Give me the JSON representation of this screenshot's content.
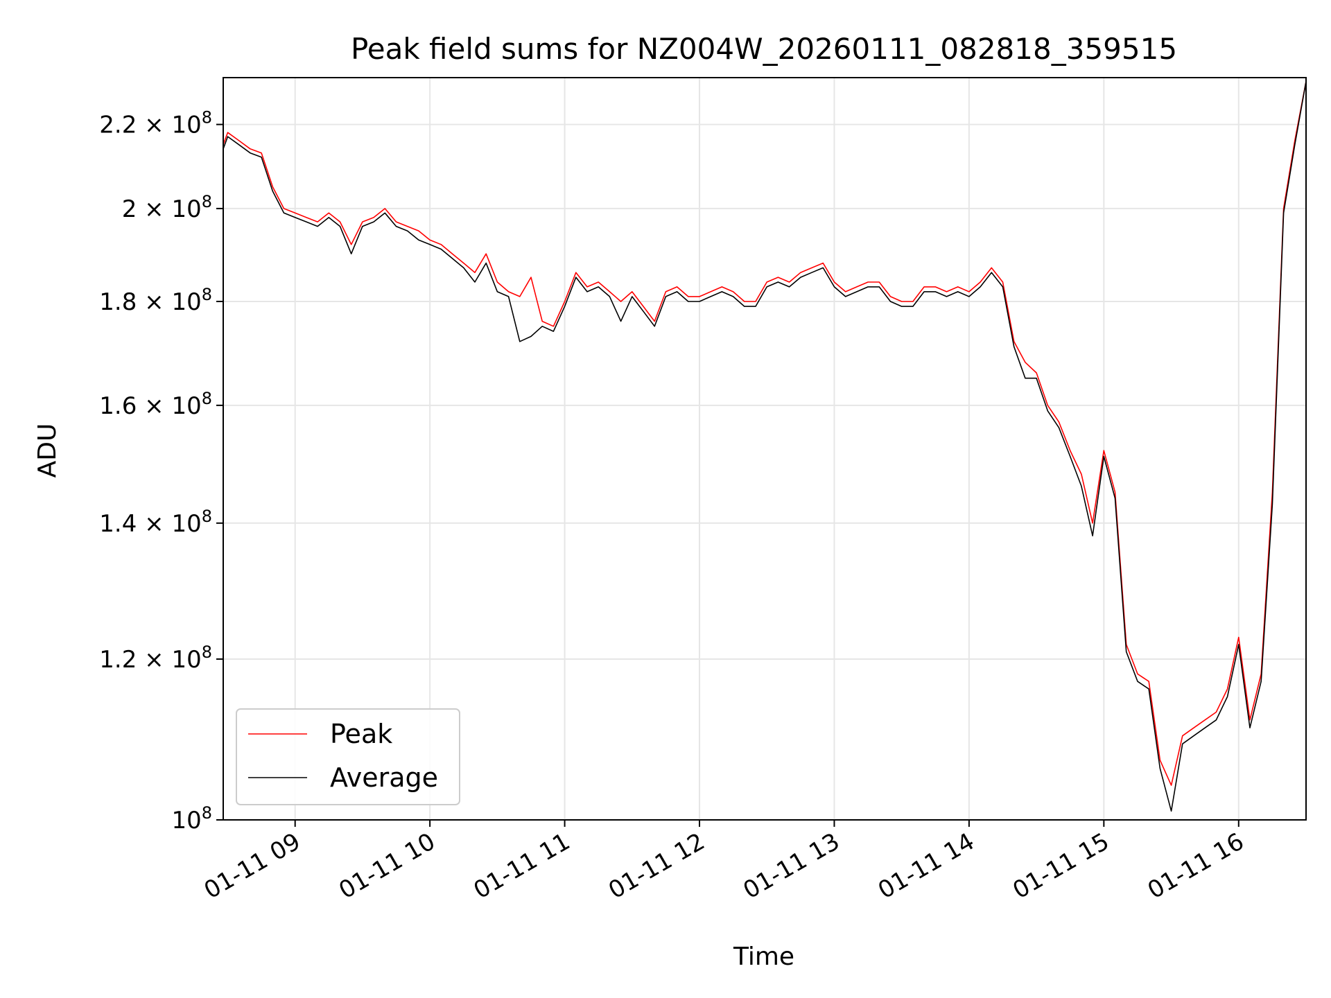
{
  "chart_data": {
    "type": "line",
    "title": "Peak field sums for NZ004W_20260111_082818_359515",
    "xlabel": "Time",
    "ylabel": "ADU",
    "y_scale": "log",
    "ylim": [
      100000000,
      232000000
    ],
    "xlim": [
      "2026-01-11 08:28",
      "2026-01-11 16:30"
    ],
    "grid": true,
    "legend_placement": "lower-left",
    "x_ticks": [
      {
        "t": "2026-01-11 09:00",
        "label": "01-11 09"
      },
      {
        "t": "2026-01-11 10:00",
        "label": "01-11 10"
      },
      {
        "t": "2026-01-11 11:00",
        "label": "01-11 11"
      },
      {
        "t": "2026-01-11 12:00",
        "label": "01-11 12"
      },
      {
        "t": "2026-01-11 13:00",
        "label": "01-11 13"
      },
      {
        "t": "2026-01-11 14:00",
        "label": "01-11 14"
      },
      {
        "t": "2026-01-11 15:00",
        "label": "01-11 15"
      },
      {
        "t": "2026-01-11 16:00",
        "label": "01-11 16"
      }
    ],
    "y_ticks": [
      {
        "value": 100000000,
        "mantissa": "",
        "exp": "8"
      },
      {
        "value": 120000000,
        "mantissa": "1.2",
        "exp": "8"
      },
      {
        "value": 140000000,
        "mantissa": "1.4",
        "exp": "8"
      },
      {
        "value": 160000000,
        "mantissa": "1.6",
        "exp": "8"
      },
      {
        "value": 180000000,
        "mantissa": "1.8",
        "exp": "8"
      },
      {
        "value": 200000000,
        "mantissa": "2",
        "exp": "8"
      },
      {
        "value": 220000000,
        "mantissa": "2.2",
        "exp": "8"
      }
    ],
    "series": [
      {
        "name": "Peak",
        "color": "#ff0000",
        "x": [
          "2026-01-11 08:28",
          "2026-01-11 08:30",
          "2026-01-11 08:35",
          "2026-01-11 08:40",
          "2026-01-11 08:45",
          "2026-01-11 08:50",
          "2026-01-11 08:55",
          "2026-01-11 09:00",
          "2026-01-11 09:05",
          "2026-01-11 09:10",
          "2026-01-11 09:15",
          "2026-01-11 09:20",
          "2026-01-11 09:25",
          "2026-01-11 09:30",
          "2026-01-11 09:35",
          "2026-01-11 09:40",
          "2026-01-11 09:45",
          "2026-01-11 09:50",
          "2026-01-11 09:55",
          "2026-01-11 10:00",
          "2026-01-11 10:05",
          "2026-01-11 10:10",
          "2026-01-11 10:15",
          "2026-01-11 10:20",
          "2026-01-11 10:25",
          "2026-01-11 10:30",
          "2026-01-11 10:35",
          "2026-01-11 10:40",
          "2026-01-11 10:45",
          "2026-01-11 10:50",
          "2026-01-11 10:55",
          "2026-01-11 11:00",
          "2026-01-11 11:05",
          "2026-01-11 11:10",
          "2026-01-11 11:15",
          "2026-01-11 11:20",
          "2026-01-11 11:25",
          "2026-01-11 11:30",
          "2026-01-11 11:35",
          "2026-01-11 11:40",
          "2026-01-11 11:45",
          "2026-01-11 11:50",
          "2026-01-11 11:55",
          "2026-01-11 12:00",
          "2026-01-11 12:05",
          "2026-01-11 12:10",
          "2026-01-11 12:15",
          "2026-01-11 12:20",
          "2026-01-11 12:25",
          "2026-01-11 12:30",
          "2026-01-11 12:35",
          "2026-01-11 12:40",
          "2026-01-11 12:45",
          "2026-01-11 12:50",
          "2026-01-11 12:55",
          "2026-01-11 13:00",
          "2026-01-11 13:05",
          "2026-01-11 13:10",
          "2026-01-11 13:15",
          "2026-01-11 13:20",
          "2026-01-11 13:25",
          "2026-01-11 13:30",
          "2026-01-11 13:35",
          "2026-01-11 13:40",
          "2026-01-11 13:45",
          "2026-01-11 13:50",
          "2026-01-11 13:55",
          "2026-01-11 14:00",
          "2026-01-11 14:05",
          "2026-01-11 14:10",
          "2026-01-11 14:15",
          "2026-01-11 14:20",
          "2026-01-11 14:25",
          "2026-01-11 14:30",
          "2026-01-11 14:35",
          "2026-01-11 14:40",
          "2026-01-11 14:45",
          "2026-01-11 14:50",
          "2026-01-11 14:55",
          "2026-01-11 15:00",
          "2026-01-11 15:05",
          "2026-01-11 15:10",
          "2026-01-11 15:15",
          "2026-01-11 15:20",
          "2026-01-11 15:25",
          "2026-01-11 15:30",
          "2026-01-11 15:35",
          "2026-01-11 15:40",
          "2026-01-11 15:45",
          "2026-01-11 15:50",
          "2026-01-11 15:55",
          "2026-01-11 16:00",
          "2026-01-11 16:05",
          "2026-01-11 16:10",
          "2026-01-11 16:15",
          "2026-01-11 16:20",
          "2026-01-11 16:25",
          "2026-01-11 16:30"
        ],
        "values": [
          215000000,
          218000000,
          216000000,
          214000000,
          213000000,
          205000000,
          200000000,
          199000000,
          198000000,
          197000000,
          199000000,
          197000000,
          192000000,
          197000000,
          198000000,
          200000000,
          197000000,
          196000000,
          195000000,
          193000000,
          192000000,
          190000000,
          188000000,
          186000000,
          190000000,
          184000000,
          182000000,
          181000000,
          185000000,
          176000000,
          175000000,
          180000000,
          186000000,
          183000000,
          184000000,
          182000000,
          180000000,
          182000000,
          179000000,
          176000000,
          182000000,
          183000000,
          181000000,
          181000000,
          182000000,
          183000000,
          182000000,
          180000000,
          180000000,
          184000000,
          185000000,
          184000000,
          186000000,
          187000000,
          188000000,
          184000000,
          182000000,
          183000000,
          184000000,
          184000000,
          181000000,
          180000000,
          180000000,
          183000000,
          183000000,
          182000000,
          183000000,
          182000000,
          184000000,
          187000000,
          184000000,
          172000000,
          168000000,
          166000000,
          160000000,
          157000000,
          152000000,
          148000000,
          140000000,
          152000000,
          145000000,
          122000000,
          118000000,
          117000000,
          107000000,
          104000000,
          110000000,
          111000000,
          112000000,
          113000000,
          116000000,
          123000000,
          112000000,
          118000000,
          145000000,
          200000000,
          216000000,
          231000000
        ]
      },
      {
        "name": "Average",
        "color": "#000000",
        "x": [
          "2026-01-11 08:28",
          "2026-01-11 08:30",
          "2026-01-11 08:35",
          "2026-01-11 08:40",
          "2026-01-11 08:45",
          "2026-01-11 08:50",
          "2026-01-11 08:55",
          "2026-01-11 09:00",
          "2026-01-11 09:05",
          "2026-01-11 09:10",
          "2026-01-11 09:15",
          "2026-01-11 09:20",
          "2026-01-11 09:25",
          "2026-01-11 09:30",
          "2026-01-11 09:35",
          "2026-01-11 09:40",
          "2026-01-11 09:45",
          "2026-01-11 09:50",
          "2026-01-11 09:55",
          "2026-01-11 10:00",
          "2026-01-11 10:05",
          "2026-01-11 10:10",
          "2026-01-11 10:15",
          "2026-01-11 10:20",
          "2026-01-11 10:25",
          "2026-01-11 10:30",
          "2026-01-11 10:35",
          "2026-01-11 10:40",
          "2026-01-11 10:45",
          "2026-01-11 10:50",
          "2026-01-11 10:55",
          "2026-01-11 11:00",
          "2026-01-11 11:05",
          "2026-01-11 11:10",
          "2026-01-11 11:15",
          "2026-01-11 11:20",
          "2026-01-11 11:25",
          "2026-01-11 11:30",
          "2026-01-11 11:35",
          "2026-01-11 11:40",
          "2026-01-11 11:45",
          "2026-01-11 11:50",
          "2026-01-11 11:55",
          "2026-01-11 12:00",
          "2026-01-11 12:05",
          "2026-01-11 12:10",
          "2026-01-11 12:15",
          "2026-01-11 12:20",
          "2026-01-11 12:25",
          "2026-01-11 12:30",
          "2026-01-11 12:35",
          "2026-01-11 12:40",
          "2026-01-11 12:45",
          "2026-01-11 12:50",
          "2026-01-11 12:55",
          "2026-01-11 13:00",
          "2026-01-11 13:05",
          "2026-01-11 13:10",
          "2026-01-11 13:15",
          "2026-01-11 13:20",
          "2026-01-11 13:25",
          "2026-01-11 13:30",
          "2026-01-11 13:35",
          "2026-01-11 13:40",
          "2026-01-11 13:45",
          "2026-01-11 13:50",
          "2026-01-11 13:55",
          "2026-01-11 14:00",
          "2026-01-11 14:05",
          "2026-01-11 14:10",
          "2026-01-11 14:15",
          "2026-01-11 14:20",
          "2026-01-11 14:25",
          "2026-01-11 14:30",
          "2026-01-11 14:35",
          "2026-01-11 14:40",
          "2026-01-11 14:45",
          "2026-01-11 14:50",
          "2026-01-11 14:55",
          "2026-01-11 15:00",
          "2026-01-11 15:05",
          "2026-01-11 15:10",
          "2026-01-11 15:15",
          "2026-01-11 15:20",
          "2026-01-11 15:25",
          "2026-01-11 15:30",
          "2026-01-11 15:35",
          "2026-01-11 15:40",
          "2026-01-11 15:45",
          "2026-01-11 15:50",
          "2026-01-11 15:55",
          "2026-01-11 16:00",
          "2026-01-11 16:05",
          "2026-01-11 16:10",
          "2026-01-11 16:15",
          "2026-01-11 16:20",
          "2026-01-11 16:25",
          "2026-01-11 16:30"
        ],
        "values": [
          214000000,
          217000000,
          215000000,
          213000000,
          212000000,
          204000000,
          199000000,
          198000000,
          197000000,
          196000000,
          198000000,
          196000000,
          190000000,
          196000000,
          197000000,
          199000000,
          196000000,
          195000000,
          193000000,
          192000000,
          191000000,
          189000000,
          187000000,
          184000000,
          188000000,
          182000000,
          181000000,
          172000000,
          173000000,
          175000000,
          174000000,
          179000000,
          185000000,
          182000000,
          183000000,
          181000000,
          176000000,
          181000000,
          178000000,
          175000000,
          181000000,
          182000000,
          180000000,
          180000000,
          181000000,
          182000000,
          181000000,
          179000000,
          179000000,
          183000000,
          184000000,
          183000000,
          185000000,
          186000000,
          187000000,
          183000000,
          181000000,
          182000000,
          183000000,
          183000000,
          180000000,
          179000000,
          179000000,
          182000000,
          182000000,
          181000000,
          182000000,
          181000000,
          183000000,
          186000000,
          183000000,
          171000000,
          165000000,
          165000000,
          159000000,
          156000000,
          151000000,
          146000000,
          138000000,
          151000000,
          144000000,
          121000000,
          117000000,
          116000000,
          106000000,
          101000000,
          109000000,
          110000000,
          111000000,
          112000000,
          115000000,
          122000000,
          111000000,
          117000000,
          143000000,
          199000000,
          215000000,
          231000000
        ]
      }
    ]
  }
}
